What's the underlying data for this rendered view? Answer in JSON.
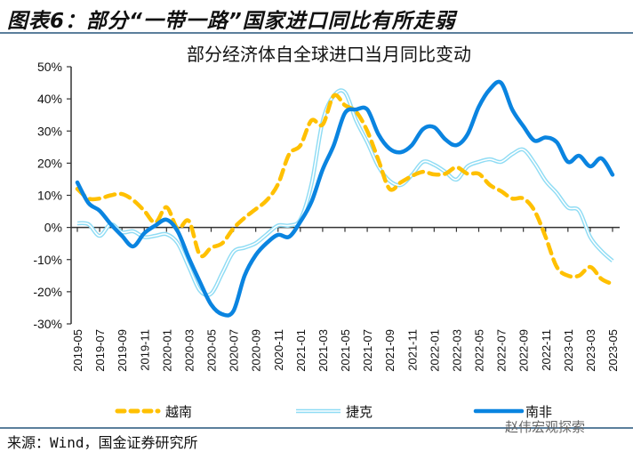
{
  "header": {
    "title": "图表6：部分“一带一路”国家进口同比有所走弱"
  },
  "footer": {
    "source": "来源：Wind，国金证券研究所",
    "watermark": "赵伟宏观探索"
  },
  "chart_data": {
    "type": "line",
    "title": "部分经济体自全球进口当月同比变动",
    "ylim": [
      -30,
      50
    ],
    "yticks": [
      "50%",
      "40%",
      "30%",
      "20%",
      "10%",
      "0%",
      "-10%",
      "-20%",
      "-30%"
    ],
    "ytick_values": [
      50,
      40,
      30,
      20,
      10,
      0,
      -10,
      -20,
      -30
    ],
    "x": [
      "2019-05",
      "2019-06",
      "2019-07",
      "2019-08",
      "2019-09",
      "2019-10",
      "2019-11",
      "2019-12",
      "2020-01",
      "2020-02",
      "2020-03",
      "2020-04",
      "2020-05",
      "2020-06",
      "2020-07",
      "2020-08",
      "2020-09",
      "2020-10",
      "2020-11",
      "2020-12",
      "2021-01",
      "2021-02",
      "2021-03",
      "2021-04",
      "2021-05",
      "2021-06",
      "2021-07",
      "2021-08",
      "2021-09",
      "2021-10",
      "2021-11",
      "2021-12",
      "2022-01",
      "2022-02",
      "2022-03",
      "2022-04",
      "2022-05",
      "2022-06",
      "2022-07",
      "2022-08",
      "2022-09",
      "2022-10",
      "2022-11",
      "2022-12",
      "2023-01",
      "2023-02",
      "2023-03",
      "2023-04",
      "2023-05"
    ],
    "xtick_labels": [
      "2019-05",
      "2019-07",
      "2019-09",
      "2019-11",
      "2020-01",
      "2020-03",
      "2020-05",
      "2020-07",
      "2020-09",
      "2020-11",
      "2021-01",
      "2021-03",
      "2021-05",
      "2021-07",
      "2021-09",
      "2021-11",
      "2022-01",
      "2022-03",
      "2022-05",
      "2022-07",
      "2022-09",
      "2022-11",
      "2023-01",
      "2023-03",
      "2023-05"
    ],
    "legend_position": "bottom",
    "grid": false,
    "series": [
      {
        "name": "越南",
        "color": "#ffc000",
        "style": "dashed",
        "values": [
          12,
          9,
          9,
          10,
          10.4,
          8.5,
          5.2,
          1.5,
          6.3,
          -0.4,
          2,
          -8.6,
          -6.3,
          -4.9,
          -0.3,
          3,
          5.7,
          8.5,
          13.5,
          22.8,
          25.5,
          33.3,
          32,
          41,
          38,
          36,
          30,
          21,
          12,
          14,
          16,
          17.3,
          16.5,
          16.7,
          18.7,
          16.7,
          16.7,
          13.2,
          11.3,
          9,
          9,
          5.2,
          -3,
          -12.3,
          -15,
          -15,
          -12.3,
          -16,
          -17.6
        ]
      },
      {
        "name": "捷克",
        "color": "#8fdcf4",
        "style": "double",
        "values": [
          1.3,
          1,
          -2.6,
          1,
          -1.5,
          -1.2,
          -3,
          -2.6,
          -2.1,
          -4.9,
          -12.3,
          -19.7,
          -20.6,
          -14.2,
          -7.6,
          -6.3,
          -4.9,
          -2.1,
          0.6,
          0.6,
          2.5,
          13.5,
          33,
          41,
          42,
          33.3,
          26.5,
          19,
          14.5,
          13.2,
          16.3,
          20.4,
          19.5,
          17.3,
          14.9,
          19,
          20.4,
          21.2,
          20.4,
          22.8,
          24.2,
          20,
          14.5,
          10.7,
          6.2,
          5.2,
          -3,
          -7.3,
          -10.4
        ]
      },
      {
        "name": "南非",
        "color": "#0a84e0",
        "style": "solid",
        "values": [
          14,
          7.6,
          5.2,
          1,
          -2.6,
          -5.9,
          -1.8,
          0.6,
          2.4,
          -1.2,
          -9.5,
          -17,
          -24,
          -27,
          -26,
          -15,
          -8.6,
          -4.8,
          -2.3,
          -2.9,
          1.8,
          8,
          18,
          25.6,
          35.6,
          36.7,
          36.7,
          29,
          24.5,
          23.4,
          25.6,
          30.6,
          31.2,
          27.4,
          25.6,
          29,
          37.5,
          43,
          45,
          36.7,
          31.5,
          27,
          28,
          26.5,
          20.4,
          22.3,
          19,
          21.5,
          16.4
        ]
      }
    ]
  }
}
